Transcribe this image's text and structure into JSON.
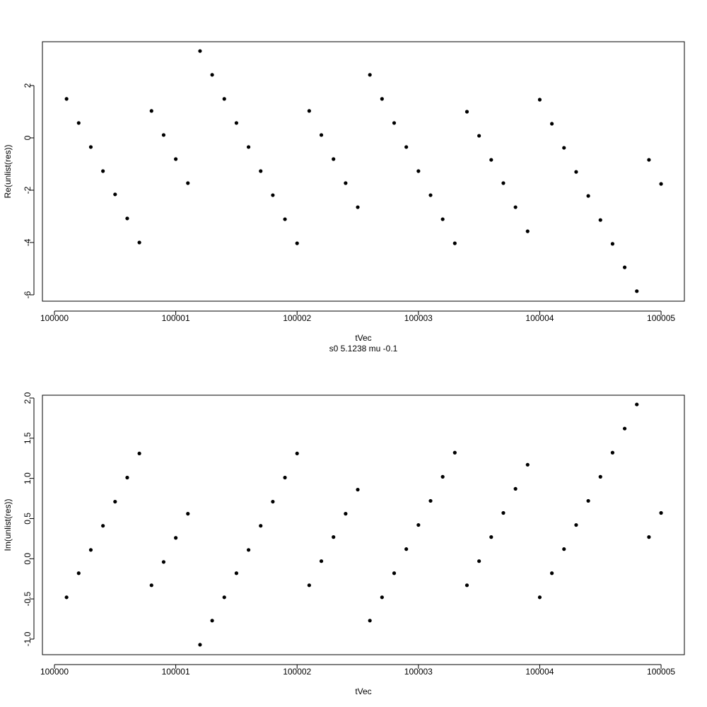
{
  "chart_data": [
    {
      "type": "scatter",
      "xlabel": "tVec",
      "ylabel": "Re(unlist(res))",
      "subtitle": "s0 5.1238 mu -0.1",
      "color": "#000000",
      "x": [
        100000.1,
        100000.2,
        100000.3,
        100000.4,
        100000.5,
        100000.6,
        100000.7,
        100000.8,
        100000.9,
        100001.0,
        100001.1,
        100001.2,
        100001.3,
        100001.4,
        100001.5,
        100001.6,
        100001.7,
        100001.8,
        100001.9,
        100002.0,
        100002.1,
        100002.2,
        100002.3,
        100002.4,
        100002.5,
        100002.6,
        100002.7,
        100002.8,
        100002.9,
        100003.0,
        100003.1,
        100003.2,
        100003.3,
        100003.4,
        100003.5,
        100003.6,
        100003.7,
        100003.8,
        100003.9,
        100004.0,
        100004.1,
        100004.2,
        100004.3,
        100004.4,
        100004.5,
        100004.6,
        100004.7,
        100004.8,
        100004.9,
        100005.0
      ],
      "values": [
        1.49,
        0.57,
        -0.35,
        -1.27,
        -2.16,
        -3.08,
        -4.0,
        1.03,
        0.11,
        -0.81,
        -1.73,
        3.32,
        2.41,
        1.49,
        0.57,
        -0.35,
        -1.27,
        -2.19,
        -3.11,
        -4.03,
        1.03,
        0.11,
        -0.81,
        -1.73,
        -2.65,
        2.41,
        1.49,
        0.57,
        -0.35,
        -1.27,
        -2.19,
        -3.11,
        -4.03,
        1.0,
        0.08,
        -0.84,
        -1.73,
        -2.65,
        -3.57,
        1.46,
        0.54,
        -0.38,
        -1.3,
        -2.22,
        -3.14,
        -4.05,
        -4.95,
        -5.86,
        -0.84,
        -1.76
      ],
      "xlim": [
        99999.901,
        100005.192
      ],
      "xticks": [
        100000,
        100001,
        100002,
        100003,
        100004,
        100005
      ],
      "ylim": [
        -6.243,
        3.676
      ],
      "yticks": [
        -6,
        -4,
        -2,
        0,
        2
      ]
    },
    {
      "type": "scatter",
      "xlabel": "tVec",
      "ylabel": "Im(unlist(res))",
      "color": "#000000",
      "x": [
        100000.1,
        100000.2,
        100000.3,
        100000.4,
        100000.5,
        100000.6,
        100000.7,
        100000.8,
        100000.9,
        100001.0,
        100001.1,
        100001.2,
        100001.3,
        100001.4,
        100001.5,
        100001.6,
        100001.7,
        100001.8,
        100001.9,
        100002.0,
        100002.1,
        100002.2,
        100002.3,
        100002.4,
        100002.5,
        100002.6,
        100002.7,
        100002.8,
        100002.9,
        100003.0,
        100003.1,
        100003.2,
        100003.3,
        100003.4,
        100003.5,
        100003.6,
        100003.7,
        100003.8,
        100003.9,
        100004.0,
        100004.1,
        100004.2,
        100004.3,
        100004.4,
        100004.5,
        100004.6,
        100004.7,
        100004.8,
        100004.9,
        100005.0
      ],
      "values": [
        -0.48,
        -0.18,
        0.11,
        0.41,
        0.71,
        1.01,
        1.31,
        -0.33,
        -0.04,
        0.26,
        0.56,
        -1.07,
        -0.77,
        -0.48,
        -0.18,
        0.11,
        0.41,
        0.71,
        1.01,
        1.31,
        -0.33,
        -0.03,
        0.27,
        0.56,
        0.86,
        -0.77,
        -0.48,
        -0.18,
        0.12,
        0.42,
        0.72,
        1.02,
        1.32,
        -0.33,
        -0.03,
        0.27,
        0.57,
        0.87,
        1.17,
        -0.48,
        -0.18,
        0.12,
        0.42,
        0.72,
        1.02,
        1.32,
        1.62,
        1.92,
        0.27,
        0.57
      ],
      "xlim": [
        99999.901,
        100005.192
      ],
      "xticks": [
        100000,
        100001,
        100002,
        100003,
        100004,
        100005
      ],
      "ylim": [
        -1.194,
        2.035
      ],
      "yticks": [
        {
          "value": -1,
          "label": "-1.0"
        },
        -0.5,
        {
          "value": 0,
          "label": "0.0"
        },
        0.5,
        {
          "value": 1,
          "label": "1.0"
        },
        1.5,
        {
          "value": 2,
          "label": "2.0"
        }
      ]
    }
  ]
}
